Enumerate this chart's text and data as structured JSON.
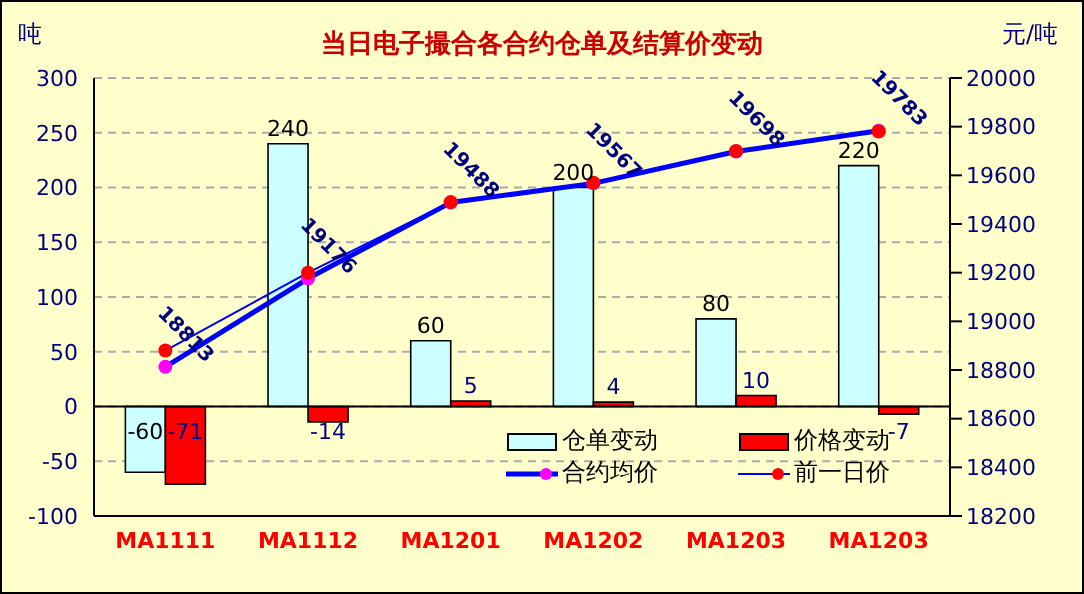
{
  "chart_data": {
    "type": "bar",
    "title": "当日电子撮合各合约仓单及结算价变动",
    "ylabel": "吨",
    "y2label": "元/吨",
    "categories": [
      "MA1111",
      "MA1112",
      "MA1201",
      "MA1202",
      "MA1203",
      "MA1203"
    ],
    "series": [
      {
        "name": "仓单变动",
        "color": "#ccffff",
        "values": [
          -60,
          240,
          60,
          200,
          80,
          220
        ],
        "value_labels": [
          "-60",
          "240",
          "60",
          "200",
          "80",
          "220"
        ]
      },
      {
        "name": "价格变动",
        "color": "#ff0000",
        "values": [
          -71,
          -14,
          5,
          4,
          10,
          -7
        ],
        "value_labels": [
          "-71",
          "-14",
          "5",
          "4",
          "10",
          "-7"
        ]
      },
      {
        "name": "合约均价",
        "type": "line",
        "axis": "y2",
        "color": "#0000ff",
        "marker": "circle",
        "values": [
          18813,
          19176,
          19488,
          19567,
          19698,
          19783
        ],
        "value_labels": [
          "18813",
          "19176",
          "19488",
          "19567",
          "19698",
          "19783"
        ]
      },
      {
        "name": "前一日价",
        "type": "line",
        "axis": "y2",
        "color": "#0000ff",
        "marker": "circle",
        "values": [
          18880,
          19200,
          19490,
          19570,
          19700,
          19780
        ]
      }
    ],
    "ylim": [
      -100,
      300
    ],
    "yticks": [
      -100,
      -50,
      0,
      50,
      100,
      150,
      200,
      250,
      300
    ],
    "y2lim": [
      18200,
      20000
    ],
    "y2ticks": [
      18200,
      18400,
      18600,
      18800,
      19000,
      19200,
      19400,
      19600,
      19800,
      20000
    ],
    "grid": "y",
    "legend": "bottom right"
  }
}
